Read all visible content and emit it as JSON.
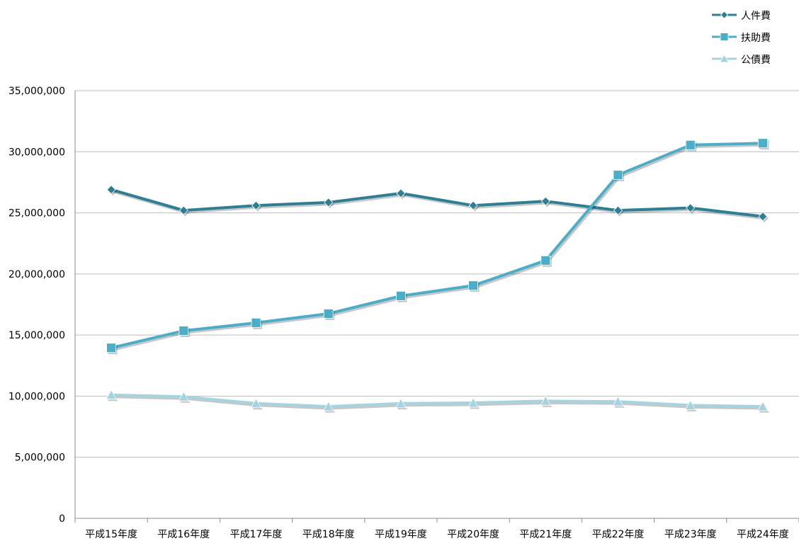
{
  "chart_data": {
    "type": "line",
    "categories": [
      "平成15年度",
      "平成16年度",
      "平成17年度",
      "平成18年度",
      "平成19年度",
      "平成20年度",
      "平成21年度",
      "平成22年度",
      "平成23年度",
      "平成24年度"
    ],
    "series": [
      {
        "name": "人件費",
        "color": "#2e7f93",
        "marker": "diamond",
        "values": [
          26900000,
          25200000,
          25600000,
          25850000,
          26600000,
          25600000,
          25950000,
          25200000,
          25400000,
          24700000
        ]
      },
      {
        "name": "扶助費",
        "color": "#4aaec8",
        "marker": "square",
        "values": [
          13950000,
          15350000,
          16000000,
          16750000,
          18200000,
          19050000,
          21100000,
          28100000,
          30550000,
          30700000
        ]
      },
      {
        "name": "公債費",
        "color": "#a6d3df",
        "marker": "triangle",
        "values": [
          10100000,
          9950000,
          9400000,
          9150000,
          9400000,
          9450000,
          9600000,
          9550000,
          9250000,
          9150000
        ]
      }
    ],
    "ylim": [
      0,
      35000000
    ],
    "yticks": [
      "0",
      "5,000,000",
      "10,000,000",
      "15,000,000",
      "20,000,000",
      "25,000,000",
      "30,000,000",
      "35,000,000"
    ],
    "grid": true,
    "legend_position": "top-right"
  }
}
